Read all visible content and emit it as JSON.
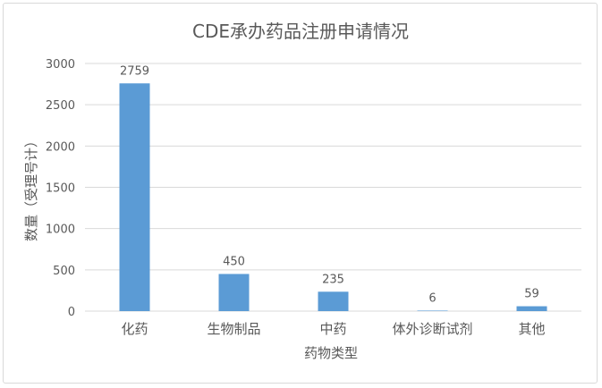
{
  "chart_data": {
    "type": "bar",
    "title": "CDE承办药品注册申请情况",
    "xlabel": "药物类型",
    "ylabel": "数量（受理号计）",
    "categories": [
      "化药",
      "生物制品",
      "中药",
      "体外诊断试剂",
      "其他"
    ],
    "values": [
      2759,
      450,
      235,
      6,
      59
    ],
    "ylim": [
      0,
      3000
    ],
    "yticks": [
      0,
      500,
      1000,
      1500,
      2000,
      2500,
      3000
    ],
    "grid": true,
    "legend": "none",
    "bar_color": "#5b9bd5"
  }
}
